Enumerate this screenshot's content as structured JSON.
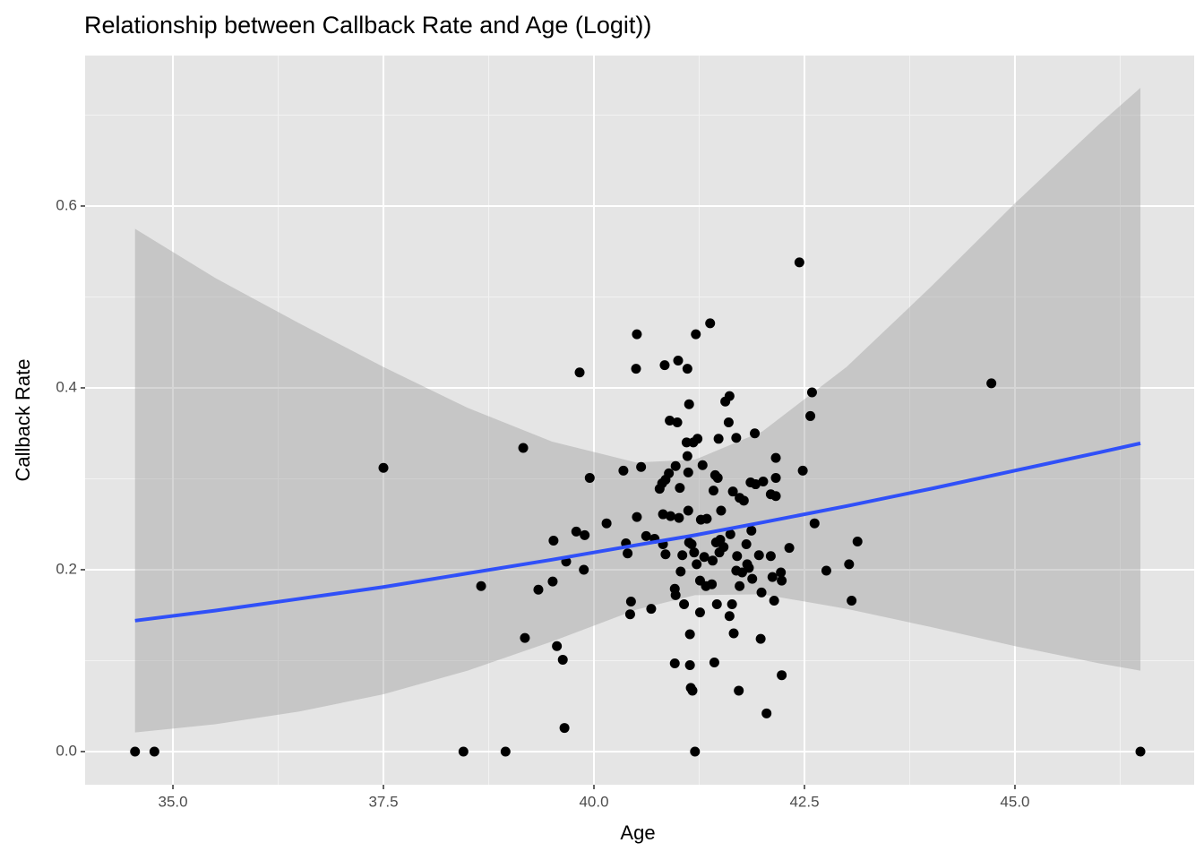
{
  "chart_data": {
    "type": "scatter",
    "title": "Relationship between Callback Rate and Age (Logit))",
    "x_label": "Age",
    "y_label": "Callback Rate",
    "xlim": [
      33.957,
      47.128
    ],
    "ylim": [
      -0.0365,
      0.7655
    ],
    "xticks": [
      {
        "value": 35,
        "label": "35.0"
      },
      37.5,
      {
        "value": 40,
        "label": "40.0"
      },
      42.5,
      {
        "value": 45,
        "label": "45.0"
      }
    ],
    "yticks": [
      {
        "value": 0,
        "label": "0.0"
      },
      0.2,
      0.4,
      0.6
    ],
    "grid": true,
    "minor_grid": true,
    "color": "#000000",
    "x": [
      34.55,
      34.78,
      37.5,
      38.45,
      38.66,
      38.95,
      39.16,
      39.18,
      39.34,
      39.51,
      39.52,
      39.56,
      39.63,
      39.65,
      39.67,
      39.79,
      39.83,
      39.88,
      39.89,
      39.95,
      40.15,
      40.35,
      40.38,
      40.4,
      40.43,
      40.44,
      40.5,
      40.51,
      40.51,
      40.56,
      40.62,
      40.68,
      40.72,
      40.78,
      40.81,
      40.82,
      40.82,
      40.84,
      40.85,
      40.85,
      40.89,
      40.9,
      40.91,
      40.96,
      40.96,
      40.97,
      40.97,
      40.99,
      41.0,
      41.01,
      41.02,
      41.03,
      41.05,
      41.07,
      41.1,
      41.11,
      41.11,
      41.12,
      41.12,
      41.13,
      41.13,
      41.14,
      41.14,
      41.15,
      41.16,
      41.17,
      41.18,
      41.19,
      41.2,
      41.21,
      41.22,
      41.23,
      41.26,
      41.26,
      41.27,
      41.29,
      41.31,
      41.33,
      41.34,
      41.38,
      41.4,
      41.41,
      41.42,
      41.43,
      41.44,
      41.45,
      41.46,
      41.47,
      41.48,
      41.49,
      41.5,
      41.51,
      41.54,
      41.56,
      41.6,
      41.61,
      41.61,
      41.62,
      41.64,
      41.65,
      41.66,
      41.69,
      41.69,
      41.7,
      41.72,
      41.73,
      41.73,
      41.76,
      41.78,
      41.81,
      41.82,
      41.84,
      41.86,
      41.87,
      41.88,
      41.91,
      41.92,
      41.96,
      41.98,
      41.99,
      42.01,
      42.05,
      42.1,
      42.1,
      42.12,
      42.14,
      42.16,
      42.16,
      42.16,
      42.22,
      42.23,
      42.23,
      42.32,
      42.44,
      42.48,
      42.57,
      42.59,
      42.62,
      42.76,
      43.03,
      43.06,
      43.13,
      44.72,
      46.49
    ],
    "values": [
      0,
      0,
      0.312,
      0,
      0.182,
      0,
      0.334,
      0.125,
      0.178,
      0.187,
      0.232,
      0.116,
      0.101,
      0.026,
      0.209,
      0.242,
      0.417,
      0.2,
      0.238,
      0.301,
      0.251,
      0.309,
      0.229,
      0.218,
      0.151,
      0.165,
      0.421,
      0.459,
      0.258,
      0.313,
      0.237,
      0.157,
      0.234,
      0.289,
      0.295,
      0.261,
      0.228,
      0.425,
      0.299,
      0.217,
      0.306,
      0.364,
      0.259,
      0.097,
      0.179,
      0.314,
      0.172,
      0.362,
      0.43,
      0.257,
      0.29,
      0.198,
      0.216,
      0.162,
      0.34,
      0.421,
      0.325,
      0.307,
      0.265,
      0.382,
      0.23,
      0.095,
      0.129,
      0.07,
      0.228,
      0.067,
      0.34,
      0.219,
      0,
      0.459,
      0.206,
      0.344,
      0.153,
      0.188,
      0.255,
      0.315,
      0.214,
      0.182,
      0.256,
      0.471,
      0.184,
      0.21,
      0.287,
      0.098,
      0.304,
      0.23,
      0.162,
      0.301,
      0.344,
      0.219,
      0.233,
      0.265,
      0.225,
      0.385,
      0.362,
      0.149,
      0.391,
      0.239,
      0.162,
      0.286,
      0.13,
      0.345,
      0.199,
      0.215,
      0.067,
      0.182,
      0.279,
      0.197,
      0.276,
      0.228,
      0.206,
      0.202,
      0.296,
      0.243,
      0.19,
      0.35,
      0.294,
      0.216,
      0.124,
      0.175,
      0.297,
      0.042,
      0.215,
      0.283,
      0.192,
      0.166,
      0.323,
      0.301,
      0.281,
      0.197,
      0.084,
      0.188,
      0.224,
      0.538,
      0.309,
      0.369,
      0.395,
      0.251,
      0.199,
      0.206,
      0.166,
      0.231,
      0.405,
      0
    ],
    "smooth": {
      "color": "#3050f8",
      "band_color": "#999999",
      "x": [
        34.55,
        35.5,
        36.5,
        37.5,
        38.5,
        39.5,
        40.5,
        41.2,
        42,
        43,
        44,
        45,
        46,
        46.49
      ],
      "values": [
        0.144,
        0.155,
        0.168,
        0.181,
        0.196,
        0.211,
        0.227,
        0.238,
        0.252,
        0.27,
        0.289,
        0.309,
        0.329,
        0.339
      ],
      "lower": [
        0.021,
        0.03,
        0.044,
        0.063,
        0.089,
        0.121,
        0.156,
        0.172,
        0.173,
        0.157,
        0.137,
        0.116,
        0.097,
        0.089
      ],
      "upper": [
        0.575,
        0.521,
        0.471,
        0.423,
        0.378,
        0.341,
        0.318,
        0.321,
        0.352,
        0.423,
        0.511,
        0.603,
        0.69,
        0.73
      ]
    }
  }
}
